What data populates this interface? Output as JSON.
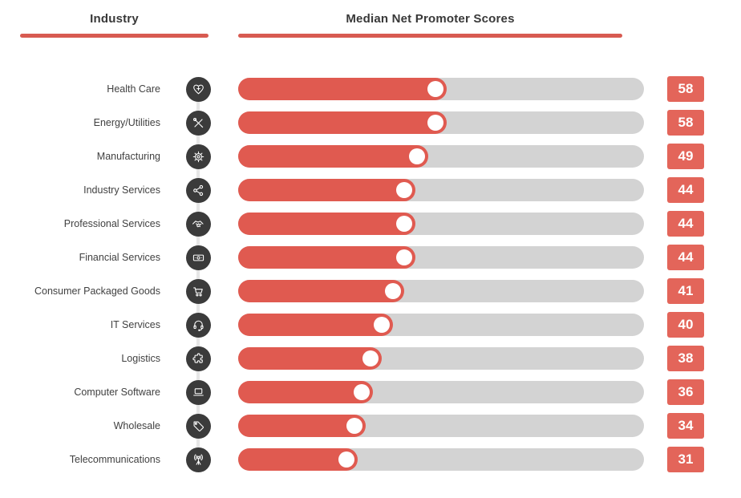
{
  "header": {
    "industry_label": "Industry",
    "scores_label": "Median Net Promoter Scores"
  },
  "colors": {
    "accent_red": "#E05A50",
    "underline_red": "#D85B51",
    "track_gray": "#D3D3D3",
    "icon_circle_dark": "#3B3B3B",
    "connector_line": "#E6E6E6",
    "badge_red": "#E3655A",
    "badge_back_red": "#ECA29A",
    "label_text": "#414141",
    "header_text": "#383838",
    "badge_text": "#FFFFFF",
    "background": "#FFFFFF"
  },
  "chart_data": {
    "type": "bar",
    "orientation": "horizontal",
    "title": "Median Net Promoter Scores",
    "xlabel": "",
    "ylabel": "Industry",
    "categories": [
      "Health Care",
      "Energy/Utilities",
      "Manufacturing",
      "Industry Services",
      "Professional Services",
      "Financial Services",
      "Consumer Packaged Goods",
      "IT Services",
      "Logistics",
      "Computer Software",
      "Wholesale",
      "Telecommunications"
    ],
    "values": [
      58,
      58,
      49,
      44,
      44,
      44,
      41,
      40,
      38,
      36,
      34,
      31
    ],
    "xlim": [
      0,
      115
    ],
    "grid": false,
    "legend": false,
    "value_labels": "red badges at right of each bar"
  },
  "rows": [
    {
      "label": "Health Care",
      "icon": "heart-plus",
      "score": 58,
      "fill_pct": 51.3
    },
    {
      "label": "Energy/Utilities",
      "icon": "tools",
      "score": 58,
      "fill_pct": 51.3
    },
    {
      "label": "Manufacturing",
      "icon": "gear",
      "score": 49,
      "fill_pct": 46.9
    },
    {
      "label": "Industry Services",
      "icon": "share-nodes",
      "score": 44,
      "fill_pct": 43.7
    },
    {
      "label": "Professional Services",
      "icon": "handshake",
      "score": 44,
      "fill_pct": 43.7
    },
    {
      "label": "Financial Services",
      "icon": "banknote",
      "score": 44,
      "fill_pct": 43.7
    },
    {
      "label": "Consumer Packaged Goods",
      "icon": "shopping-cart",
      "score": 41,
      "fill_pct": 41.0
    },
    {
      "label": "IT Services",
      "icon": "headset",
      "score": 40,
      "fill_pct": 38.2
    },
    {
      "label": "Logistics",
      "icon": "puzzle",
      "score": 38,
      "fill_pct": 35.4
    },
    {
      "label": "Computer Software",
      "icon": "laptop",
      "score": 36,
      "fill_pct": 33.2
    },
    {
      "label": "Wholesale",
      "icon": "price-tag",
      "score": 34,
      "fill_pct": 31.4
    },
    {
      "label": "Telecommunications",
      "icon": "antenna",
      "score": 31,
      "fill_pct": 29.4
    }
  ]
}
